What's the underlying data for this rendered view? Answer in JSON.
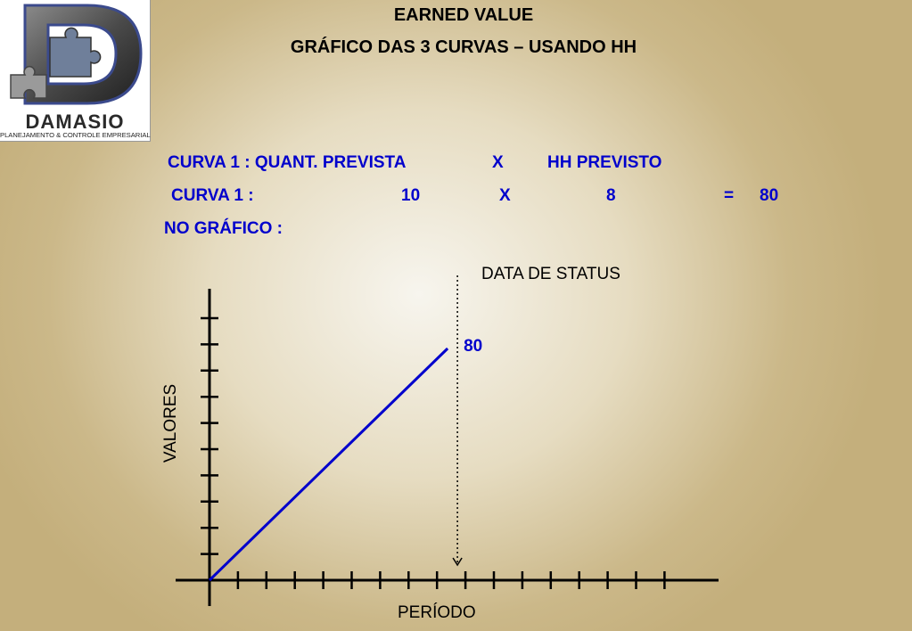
{
  "logo": {
    "name": "DAMASIO",
    "tagline": "PLANEJAMENTO & CONTROLE EMPRESARIAL",
    "monogram": "D",
    "icon": "puzzle-pieces"
  },
  "header": {
    "title": "EARNED VALUE",
    "subtitle": "GRÁFICO DAS 3 CURVAS – USANDO HH"
  },
  "formula": {
    "line1": {
      "curve": "CURVA 1 : QUANT. PREVISTA",
      "operator": "X",
      "factor": "HH PREVISTO"
    },
    "line2": {
      "curve": "CURVA 1 :",
      "quantity": "10",
      "operator": "X",
      "hh": "8",
      "equals": "=",
      "result": "80"
    },
    "line3": "NO GRÁFICO :"
  },
  "colors": {
    "curve": "#0000cc",
    "axes": "#000000",
    "accent_text": "#0000cc"
  },
  "chart_data": {
    "type": "line",
    "xlabel": "PERÍODO",
    "ylabel": "VALORES",
    "x_ticks": 16,
    "y_ticks": 10,
    "series": [
      {
        "points": [
          [
            0,
            0
          ],
          [
            9,
            80
          ]
        ],
        "end_label": "80"
      }
    ],
    "status_line": {
      "label": "DATA DE STATUS",
      "x": 9
    },
    "grid": false
  }
}
